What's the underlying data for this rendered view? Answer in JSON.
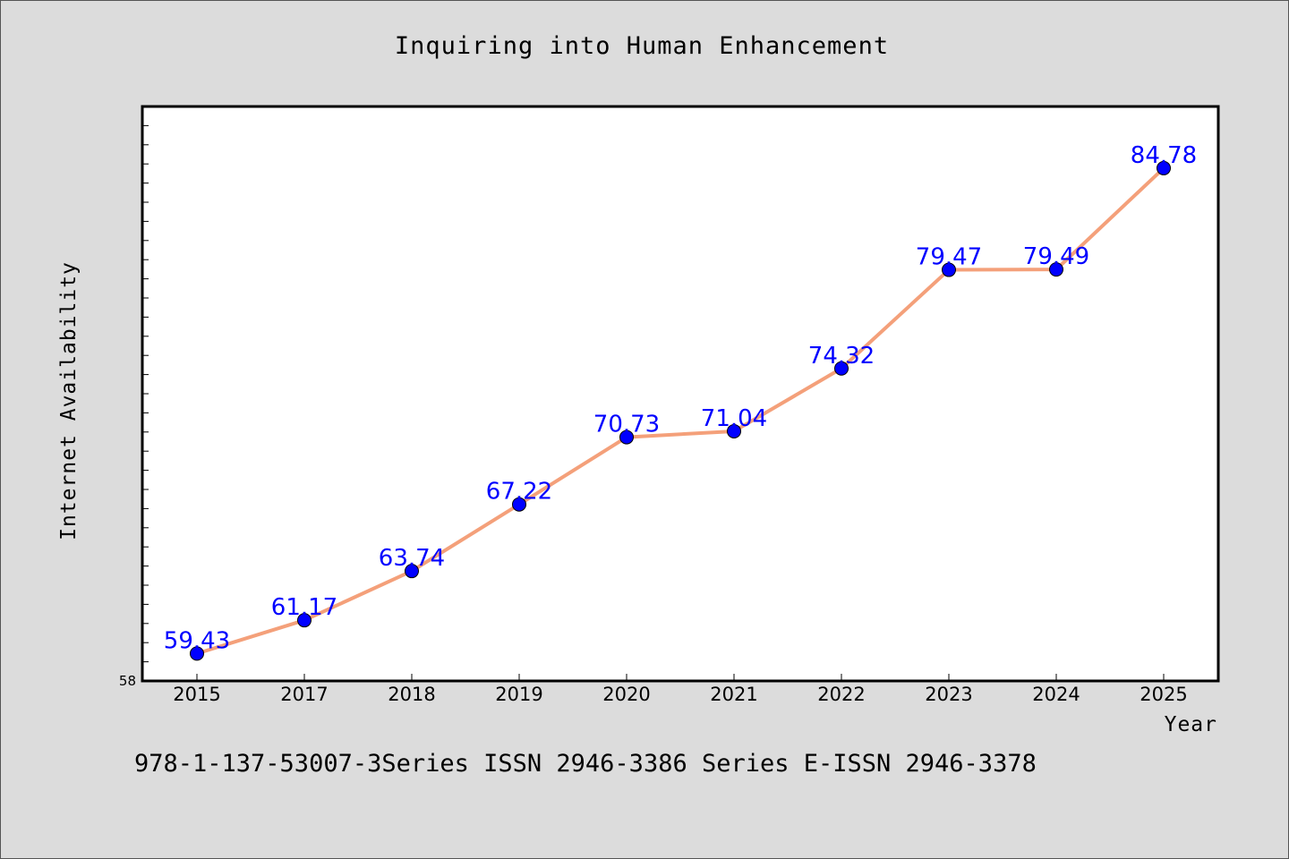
{
  "chart_data": {
    "type": "line",
    "title": "Inquiring into Human Enhancement",
    "xlabel": "Year",
    "ylabel": "Internet Availability",
    "categories": [
      "2015",
      "2017",
      "2018",
      "2019",
      "2020",
      "2021",
      "2022",
      "2023",
      "2024",
      "2025"
    ],
    "series": [
      {
        "values": [
          59.43,
          61.17,
          63.74,
          67.22,
          70.73,
          71.04,
          74.32,
          79.47,
          79.49,
          84.78
        ]
      }
    ],
    "ylim": [
      58,
      88
    ],
    "y_tick_labels": [
      "58"
    ],
    "grid": false,
    "colors": {
      "line": "#f4a07a",
      "marker": "#0000ff",
      "data_label": "#0000ff",
      "background": "#dcdcdc",
      "plot_background": "#ffffff"
    }
  },
  "footer": {
    "text": "978-1-137-53007-3Series ISSN 2946-3386 Series E-ISSN 2946-3378"
  }
}
